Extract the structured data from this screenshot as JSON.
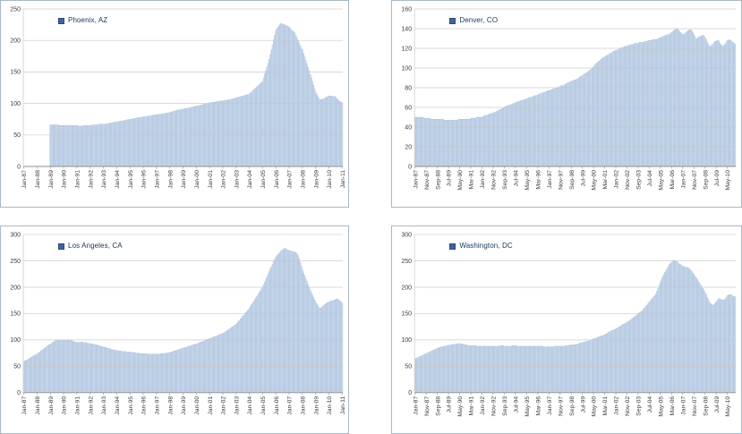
{
  "colors": {
    "bar_fill": "#ccdaec",
    "bar_stroke": "#a3bcd9",
    "gridline": "#c6c6c6",
    "axis_line": "#8f8f8f",
    "tick_text": "#3c3c3c",
    "legend_text": "#17365d",
    "legend_marker": "#41639c",
    "panel_border": "#a9b8c6",
    "background": "#ffffff"
  },
  "chart_data": [
    {
      "type": "bar",
      "city": "Phoenix, AZ",
      "legend_position": "top-inside",
      "grid": "horizontal",
      "interval": "monthly",
      "axis_start": "Jan-87",
      "data_start": "Jan-89",
      "n_slots": 289,
      "offset": 24,
      "x_tick_step": 12,
      "x_tick_labels": [
        "Jan-87",
        "Jan-88",
        "Jan-89",
        "Jan-90",
        "Jan-91",
        "Jan-92",
        "Jan-93",
        "Jan-94",
        "Jan-95",
        "Jan-96",
        "Jan-97",
        "Jan-98",
        "Jan-99",
        "Jan-00",
        "Jan-01",
        "Jan-02",
        "Jan-03",
        "Jan-04",
        "Jan-05",
        "Jan-06",
        "Jan-07",
        "Jan-08",
        "Jan-09",
        "Jan-10",
        "Jan-11"
      ],
      "ylim": [
        0,
        250
      ],
      "y_ticks": [
        0,
        50,
        100,
        150,
        200,
        250
      ],
      "values": [
        66,
        66,
        66,
        66,
        66,
        66,
        66,
        66,
        65,
        65,
        65,
        65,
        65,
        65,
        65,
        65,
        65,
        65,
        65,
        65,
        65,
        65,
        65,
        65,
        65,
        64,
        64,
        64,
        64,
        64,
        65,
        65,
        65,
        65,
        65,
        65,
        65,
        65,
        66,
        66,
        66,
        66,
        66,
        66,
        67,
        67,
        67,
        67,
        67,
        67,
        67,
        68,
        68,
        68,
        69,
        69,
        69,
        70,
        70,
        70,
        71,
        71,
        71,
        72,
        72,
        72,
        73,
        73,
        73,
        74,
        74,
        74,
        75,
        75,
        75,
        76,
        76,
        76,
        77,
        77,
        77,
        78,
        78,
        78,
        79,
        79,
        79,
        79,
        80,
        80,
        80,
        81,
        81,
        81,
        82,
        82,
        82,
        82,
        83,
        83,
        83,
        83,
        84,
        84,
        84,
        85,
        85,
        85,
        86,
        86,
        87,
        87,
        88,
        88,
        89,
        89,
        90,
        90,
        90,
        91,
        91,
        91,
        92,
        92,
        92,
        93,
        93,
        93,
        94,
        94,
        95,
        95,
        96,
        96,
        96,
        97,
        97,
        98,
        98,
        99,
        99,
        99,
        100,
        100,
        101,
        101,
        101,
        102,
        102,
        102,
        103,
        103,
        103,
        103,
        104,
        104,
        104,
        104,
        105,
        105,
        105,
        106,
        106,
        106,
        107,
        107,
        108,
        108,
        109,
        109,
        110,
        110,
        111,
        111,
        112,
        112,
        113,
        113,
        114,
        114,
        115,
        117,
        118,
        120,
        122,
        123,
        125,
        127,
        128,
        130,
        132,
        133,
        135,
        141,
        147,
        152,
        158,
        164,
        170,
        178,
        185,
        193,
        201,
        208,
        216,
        219,
        221,
        224,
        226,
        227,
        226,
        225,
        225,
        224,
        223,
        222,
        221,
        219,
        217,
        215,
        214,
        212,
        208,
        204,
        200,
        196,
        192,
        188,
        185,
        179,
        174,
        168,
        163,
        157,
        152,
        146,
        141,
        135,
        129,
        123,
        117,
        114,
        111,
        108,
        106,
        106,
        107,
        107,
        108,
        109,
        110,
        111,
        112,
        112,
        112,
        111,
        111,
        111,
        110,
        108,
        106,
        104,
        103,
        102,
        101
      ]
    },
    {
      "type": "bar",
      "city": "Denver, CO",
      "legend_position": "top-inside",
      "grid": "horizontal",
      "interval": "monthly",
      "axis_start": "Jan-87",
      "data_start": "Jan-87",
      "n_slots": 288,
      "offset": 0,
      "x_tick_step": 10,
      "x_tick_labels": [
        "Jan-87",
        "Nov-87",
        "Sep-88",
        "Jul-89",
        "May-90",
        "Mar-91",
        "Jan-92",
        "Nov-92",
        "Sep-93",
        "Jul-94",
        "May-95",
        "Mar-96",
        "Jan-97",
        "Nov-97",
        "Sep-98",
        "Jul-99",
        "May-00",
        "Mar-01",
        "Jan-02",
        "Nov-02",
        "Sep-03",
        "Jul-04",
        "May-05",
        "Mar-06",
        "Jan-07",
        "Nov-07",
        "Sep-08",
        "Jul-09",
        "May-10"
      ],
      "ylim": [
        0,
        160
      ],
      "y_ticks": [
        0,
        20,
        40,
        60,
        80,
        100,
        120,
        140,
        160
      ],
      "values": [
        50,
        50,
        50,
        50,
        50,
        50,
        50,
        50,
        49,
        49,
        49,
        49,
        49,
        49,
        48,
        48,
        48,
        48,
        48,
        48,
        48,
        48,
        48,
        48,
        48,
        48,
        47,
        47,
        47,
        47,
        47,
        47,
        47,
        47,
        47,
        47,
        47,
        47,
        47,
        48,
        48,
        48,
        48,
        48,
        48,
        48,
        48,
        48,
        48,
        48,
        49,
        49,
        49,
        49,
        49,
        50,
        50,
        50,
        50,
        50,
        50,
        51,
        51,
        52,
        52,
        52,
        53,
        53,
        54,
        54,
        54,
        55,
        55,
        56,
        56,
        57,
        58,
        58,
        59,
        59,
        60,
        61,
        61,
        62,
        62,
        62,
        63,
        63,
        64,
        64,
        65,
        65,
        66,
        66,
        66,
        67,
        67,
        67,
        68,
        68,
        69,
        69,
        70,
        70,
        70,
        71,
        71,
        72,
        72,
        72,
        73,
        73,
        74,
        74,
        75,
        75,
        75,
        76,
        76,
        77,
        77,
        77,
        78,
        78,
        79,
        79,
        80,
        80,
        80,
        81,
        81,
        82,
        82,
        82,
        83,
        84,
        84,
        85,
        85,
        86,
        86,
        87,
        87,
        88,
        88,
        89,
        89,
        90,
        91,
        92,
        92,
        93,
        94,
        95,
        95,
        96,
        97,
        98,
        99,
        100,
        101,
        103,
        104,
        105,
        106,
        107,
        108,
        109,
        110,
        111,
        111,
        112,
        113,
        113,
        114,
        115,
        115,
        116,
        117,
        117,
        118,
        118,
        119,
        119,
        120,
        120,
        121,
        121,
        122,
        122,
        122,
        123,
        123,
        123,
        124,
        124,
        124,
        125,
        125,
        125,
        125,
        126,
        126,
        126,
        126,
        126,
        127,
        127,
        127,
        128,
        128,
        128,
        128,
        129,
        129,
        129,
        129,
        129,
        130,
        130,
        131,
        131,
        132,
        132,
        133,
        133,
        134,
        134,
        134,
        135,
        136,
        137,
        138,
        139,
        140,
        140,
        139,
        137,
        136,
        135,
        134,
        134,
        135,
        136,
        137,
        138,
        139,
        139,
        138,
        136,
        134,
        132,
        129,
        130,
        131,
        132,
        132,
        133,
        133,
        133,
        131,
        129,
        126,
        124,
        122,
        122,
        123,
        124,
        125,
        127,
        127,
        128,
        128,
        126,
        124,
        123,
        122,
        123,
        124,
        126,
        128,
        128,
        129,
        128,
        127,
        126,
        125,
        124
      ]
    },
    {
      "type": "bar",
      "city": "Los Angeles, CA",
      "legend_position": "top-inside",
      "grid": "horizontal",
      "interval": "monthly",
      "axis_start": "Jan-87",
      "data_start": "Jan-87",
      "n_slots": 289,
      "offset": 0,
      "x_tick_step": 12,
      "x_tick_labels": [
        "Jan-87",
        "Jan-88",
        "Jan-89",
        "Jan-90",
        "Jan-91",
        "Jan-92",
        "Jan-93",
        "Jan-94",
        "Jan-95",
        "Jan-96",
        "Jan-97",
        "Jan-98",
        "Jan-99",
        "Jan-00",
        "Jan-01",
        "Jan-02",
        "Jan-03",
        "Jan-04",
        "Jan-05",
        "Jan-06",
        "Jan-07",
        "Jan-08",
        "Jan-09",
        "Jan-10",
        "Jan-11"
      ],
      "ylim": [
        0,
        300
      ],
      "y_ticks": [
        0,
        50,
        100,
        150,
        200,
        250,
        300
      ],
      "values": [
        59,
        60,
        61,
        62,
        64,
        65,
        66,
        67,
        69,
        70,
        71,
        72,
        73,
        75,
        76,
        78,
        80,
        81,
        83,
        84,
        86,
        88,
        89,
        91,
        92,
        93,
        95,
        96,
        98,
        99,
        99,
        100,
        100,
        100,
        100,
        100,
        100,
        100,
        100,
        100,
        100,
        100,
        99,
        99,
        98,
        97,
        96,
        96,
        95,
        95,
        95,
        96,
        96,
        96,
        95,
        95,
        95,
        94,
        94,
        93,
        93,
        93,
        92,
        92,
        91,
        91,
        90,
        90,
        89,
        88,
        88,
        87,
        87,
        86,
        86,
        85,
        84,
        84,
        83,
        82,
        82,
        81,
        81,
        80,
        80,
        80,
        79,
        79,
        79,
        78,
        78,
        78,
        78,
        77,
        77,
        77,
        77,
        77,
        76,
        76,
        76,
        76,
        75,
        75,
        75,
        74,
        74,
        74,
        74,
        74,
        74,
        74,
        73,
        73,
        73,
        73,
        73,
        73,
        73,
        73,
        73,
        73,
        73,
        73,
        74,
        74,
        74,
        74,
        75,
        75,
        75,
        76,
        76,
        77,
        77,
        78,
        79,
        80,
        80,
        81,
        82,
        82,
        83,
        84,
        84,
        85,
        85,
        86,
        87,
        88,
        88,
        89,
        90,
        90,
        91,
        92,
        92,
        93,
        94,
        95,
        96,
        97,
        97,
        98,
        99,
        100,
        101,
        102,
        102,
        103,
        104,
        105,
        106,
        106,
        107,
        108,
        109,
        110,
        111,
        112,
        112,
        113,
        115,
        116,
        118,
        119,
        121,
        122,
        124,
        125,
        127,
        128,
        130,
        132,
        135,
        137,
        140,
        142,
        145,
        147,
        150,
        152,
        155,
        157,
        160,
        163,
        167,
        170,
        173,
        177,
        180,
        183,
        187,
        190,
        193,
        197,
        200,
        205,
        210,
        215,
        220,
        225,
        230,
        235,
        239,
        244,
        248,
        253,
        257,
        260,
        262,
        264,
        267,
        270,
        271,
        272,
        274,
        273,
        271,
        270,
        270,
        269,
        268,
        268,
        267,
        267,
        266,
        263,
        260,
        254,
        247,
        240,
        233,
        227,
        222,
        216,
        211,
        205,
        200,
        195,
        190,
        185,
        181,
        176,
        171,
        168,
        164,
        161,
        160,
        161,
        163,
        165,
        167,
        168,
        170,
        171,
        172,
        173,
        174,
        174,
        175,
        176,
        177,
        178,
        177,
        176,
        174,
        172,
        170
      ]
    },
    {
      "type": "bar",
      "city": "Washington, DC",
      "legend_position": "top-inside",
      "grid": "horizontal",
      "interval": "monthly",
      "axis_start": "Jan-87",
      "data_start": "Jan-87",
      "n_slots": 288,
      "offset": 0,
      "x_tick_step": 10,
      "x_tick_labels": [
        "Jan-87",
        "Nov-87",
        "Sep-88",
        "Jul-89",
        "May-90",
        "Mar-91",
        "Jan-92",
        "Nov-92",
        "Sep-93",
        "Jul-94",
        "May-95",
        "Mar-96",
        "Jan-97",
        "Nov-97",
        "Sep-98",
        "Jul-99",
        "May-00",
        "Mar-01",
        "Jan-02",
        "Nov-02",
        "Sep-03",
        "Jul-04",
        "May-05",
        "Mar-06",
        "Jan-07",
        "Nov-07",
        "Sep-08",
        "Jul-09",
        "May-10"
      ],
      "ylim": [
        0,
        300
      ],
      "y_ticks": [
        0,
        50,
        100,
        150,
        200,
        250,
        300
      ],
      "values": [
        64,
        65,
        66,
        67,
        68,
        69,
        70,
        71,
        72,
        73,
        74,
        75,
        76,
        77,
        78,
        79,
        80,
        81,
        82,
        83,
        84,
        85,
        86,
        86,
        87,
        87,
        88,
        88,
        89,
        89,
        90,
        90,
        91,
        91,
        91,
        92,
        92,
        92,
        93,
        93,
        93,
        93,
        92,
        92,
        91,
        91,
        90,
        90,
        89,
        89,
        89,
        89,
        89,
        89,
        89,
        89,
        88,
        88,
        88,
        88,
        88,
        88,
        88,
        88,
        88,
        88,
        88,
        88,
        88,
        88,
        88,
        88,
        88,
        88,
        88,
        88,
        89,
        89,
        89,
        89,
        88,
        88,
        88,
        88,
        88,
        88,
        88,
        89,
        89,
        89,
        89,
        89,
        88,
        88,
        88,
        88,
        88,
        88,
        88,
        88,
        88,
        88,
        88,
        88,
        88,
        88,
        88,
        88,
        88,
        88,
        88,
        88,
        88,
        88,
        88,
        87,
        87,
        87,
        87,
        87,
        87,
        87,
        87,
        87,
        87,
        88,
        88,
        88,
        88,
        88,
        88,
        88,
        88,
        88,
        88,
        89,
        89,
        89,
        90,
        90,
        90,
        91,
        91,
        91,
        91,
        92,
        92,
        93,
        94,
        94,
        95,
        96,
        96,
        97,
        97,
        98,
        98,
        99,
        100,
        101,
        102,
        102,
        103,
        104,
        105,
        106,
        107,
        108,
        108,
        109,
        110,
        111,
        112,
        114,
        115,
        116,
        117,
        118,
        119,
        120,
        121,
        122,
        123,
        125,
        126,
        127,
        129,
        130,
        131,
        132,
        134,
        135,
        136,
        138,
        139,
        141,
        143,
        144,
        146,
        148,
        149,
        151,
        153,
        154,
        156,
        159,
        161,
        164,
        166,
        169,
        172,
        174,
        177,
        179,
        182,
        184,
        187,
        193,
        198,
        204,
        209,
        215,
        220,
        224,
        228,
        232,
        235,
        239,
        243,
        245,
        247,
        249,
        251,
        250,
        249,
        248,
        246,
        244,
        243,
        241,
        240,
        239,
        238,
        238,
        237,
        237,
        235,
        233,
        230,
        227,
        224,
        221,
        218,
        215,
        211,
        208,
        205,
        201,
        198,
        194,
        190,
        186,
        181,
        177,
        172,
        169,
        167,
        166,
        167,
        169,
        172,
        175,
        178,
        178,
        177,
        176,
        176,
        176,
        177,
        180,
        184,
        185,
        186,
        186,
        185,
        183,
        182,
        182
      ]
    }
  ]
}
